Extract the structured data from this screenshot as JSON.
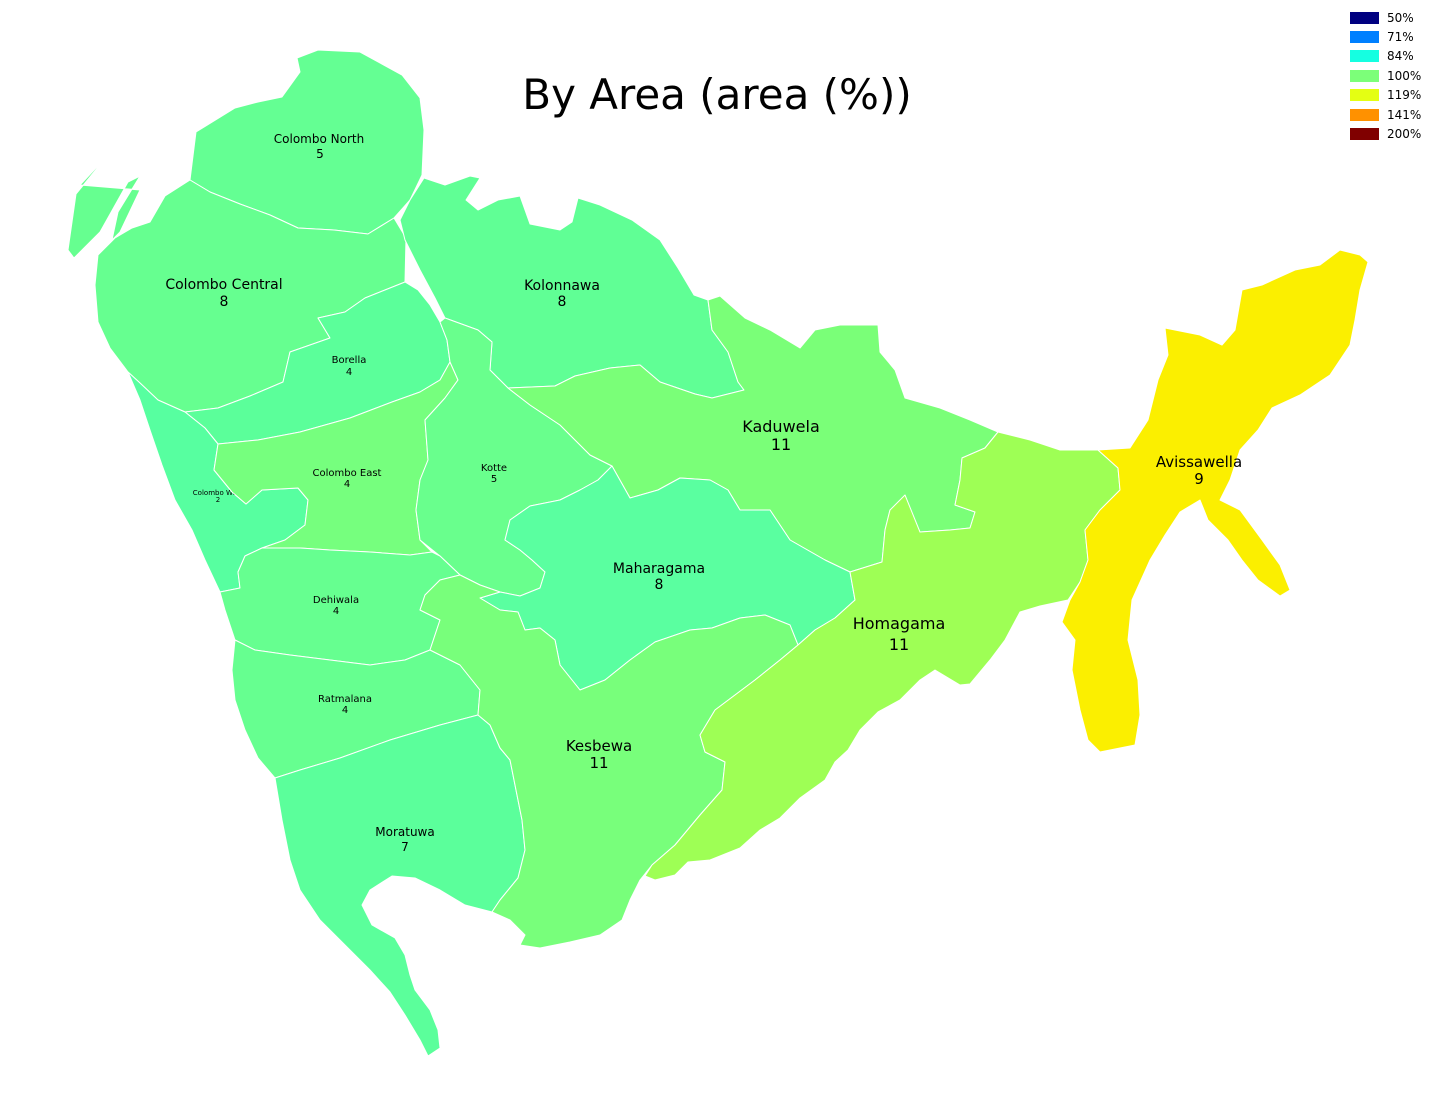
{
  "title": "By Area (area (%))",
  "legend": [
    {
      "label": "50%",
      "color": "#000080"
    },
    {
      "label": "71%",
      "color": "#0080ff"
    },
    {
      "label": "84%",
      "color": "#15ffe1"
    },
    {
      "label": "100%",
      "color": "#7cff79"
    },
    {
      "label": "119%",
      "color": "#e4ff13"
    },
    {
      "label": "141%",
      "color": "#ff9100"
    },
    {
      "label": "200%",
      "color": "#800000"
    }
  ],
  "regions": [
    {
      "id": "colombo-north",
      "name": "Colombo North",
      "value": "5",
      "color": "#64ff93"
    },
    {
      "id": "colombo-central",
      "name": "Colombo Central",
      "value": "8",
      "color": "#66ff90"
    },
    {
      "id": "kolonnawa",
      "name": "Kolonnawa",
      "value": "8",
      "color": "#60ff95"
    },
    {
      "id": "borella",
      "name": "Borella",
      "value": "4",
      "color": "#5bff9a"
    },
    {
      "id": "colombo-west",
      "name": "Colombo West",
      "value": "2",
      "color": "#57ffa0"
    },
    {
      "id": "colombo-east",
      "name": "Colombo East",
      "value": "4",
      "color": "#76ff7e"
    },
    {
      "id": "kotte",
      "name": "Kotte",
      "value": "5",
      "color": "#69ff8d"
    },
    {
      "id": "kaduwela",
      "name": "Kaduwela",
      "value": "11",
      "color": "#7aff78"
    },
    {
      "id": "maharagama",
      "name": "Maharagama",
      "value": "8",
      "color": "#5affa0"
    },
    {
      "id": "dehiwala",
      "name": "Dehiwala",
      "value": "4",
      "color": "#66ff90"
    },
    {
      "id": "ratmalana",
      "name": "Ratmalana",
      "value": "4",
      "color": "#66ff90"
    },
    {
      "id": "moratuwa",
      "name": "Moratuwa",
      "value": "7",
      "color": "#5bff9b"
    },
    {
      "id": "kesbewa",
      "name": "Kesbewa",
      "value": "11",
      "color": "#78ff7b"
    },
    {
      "id": "homagama",
      "name": "Homagama",
      "value": "11",
      "color": "#9eff55"
    },
    {
      "id": "avissawella",
      "name": "Avissawella",
      "value": "9",
      "color": "#fbef00"
    }
  ]
}
